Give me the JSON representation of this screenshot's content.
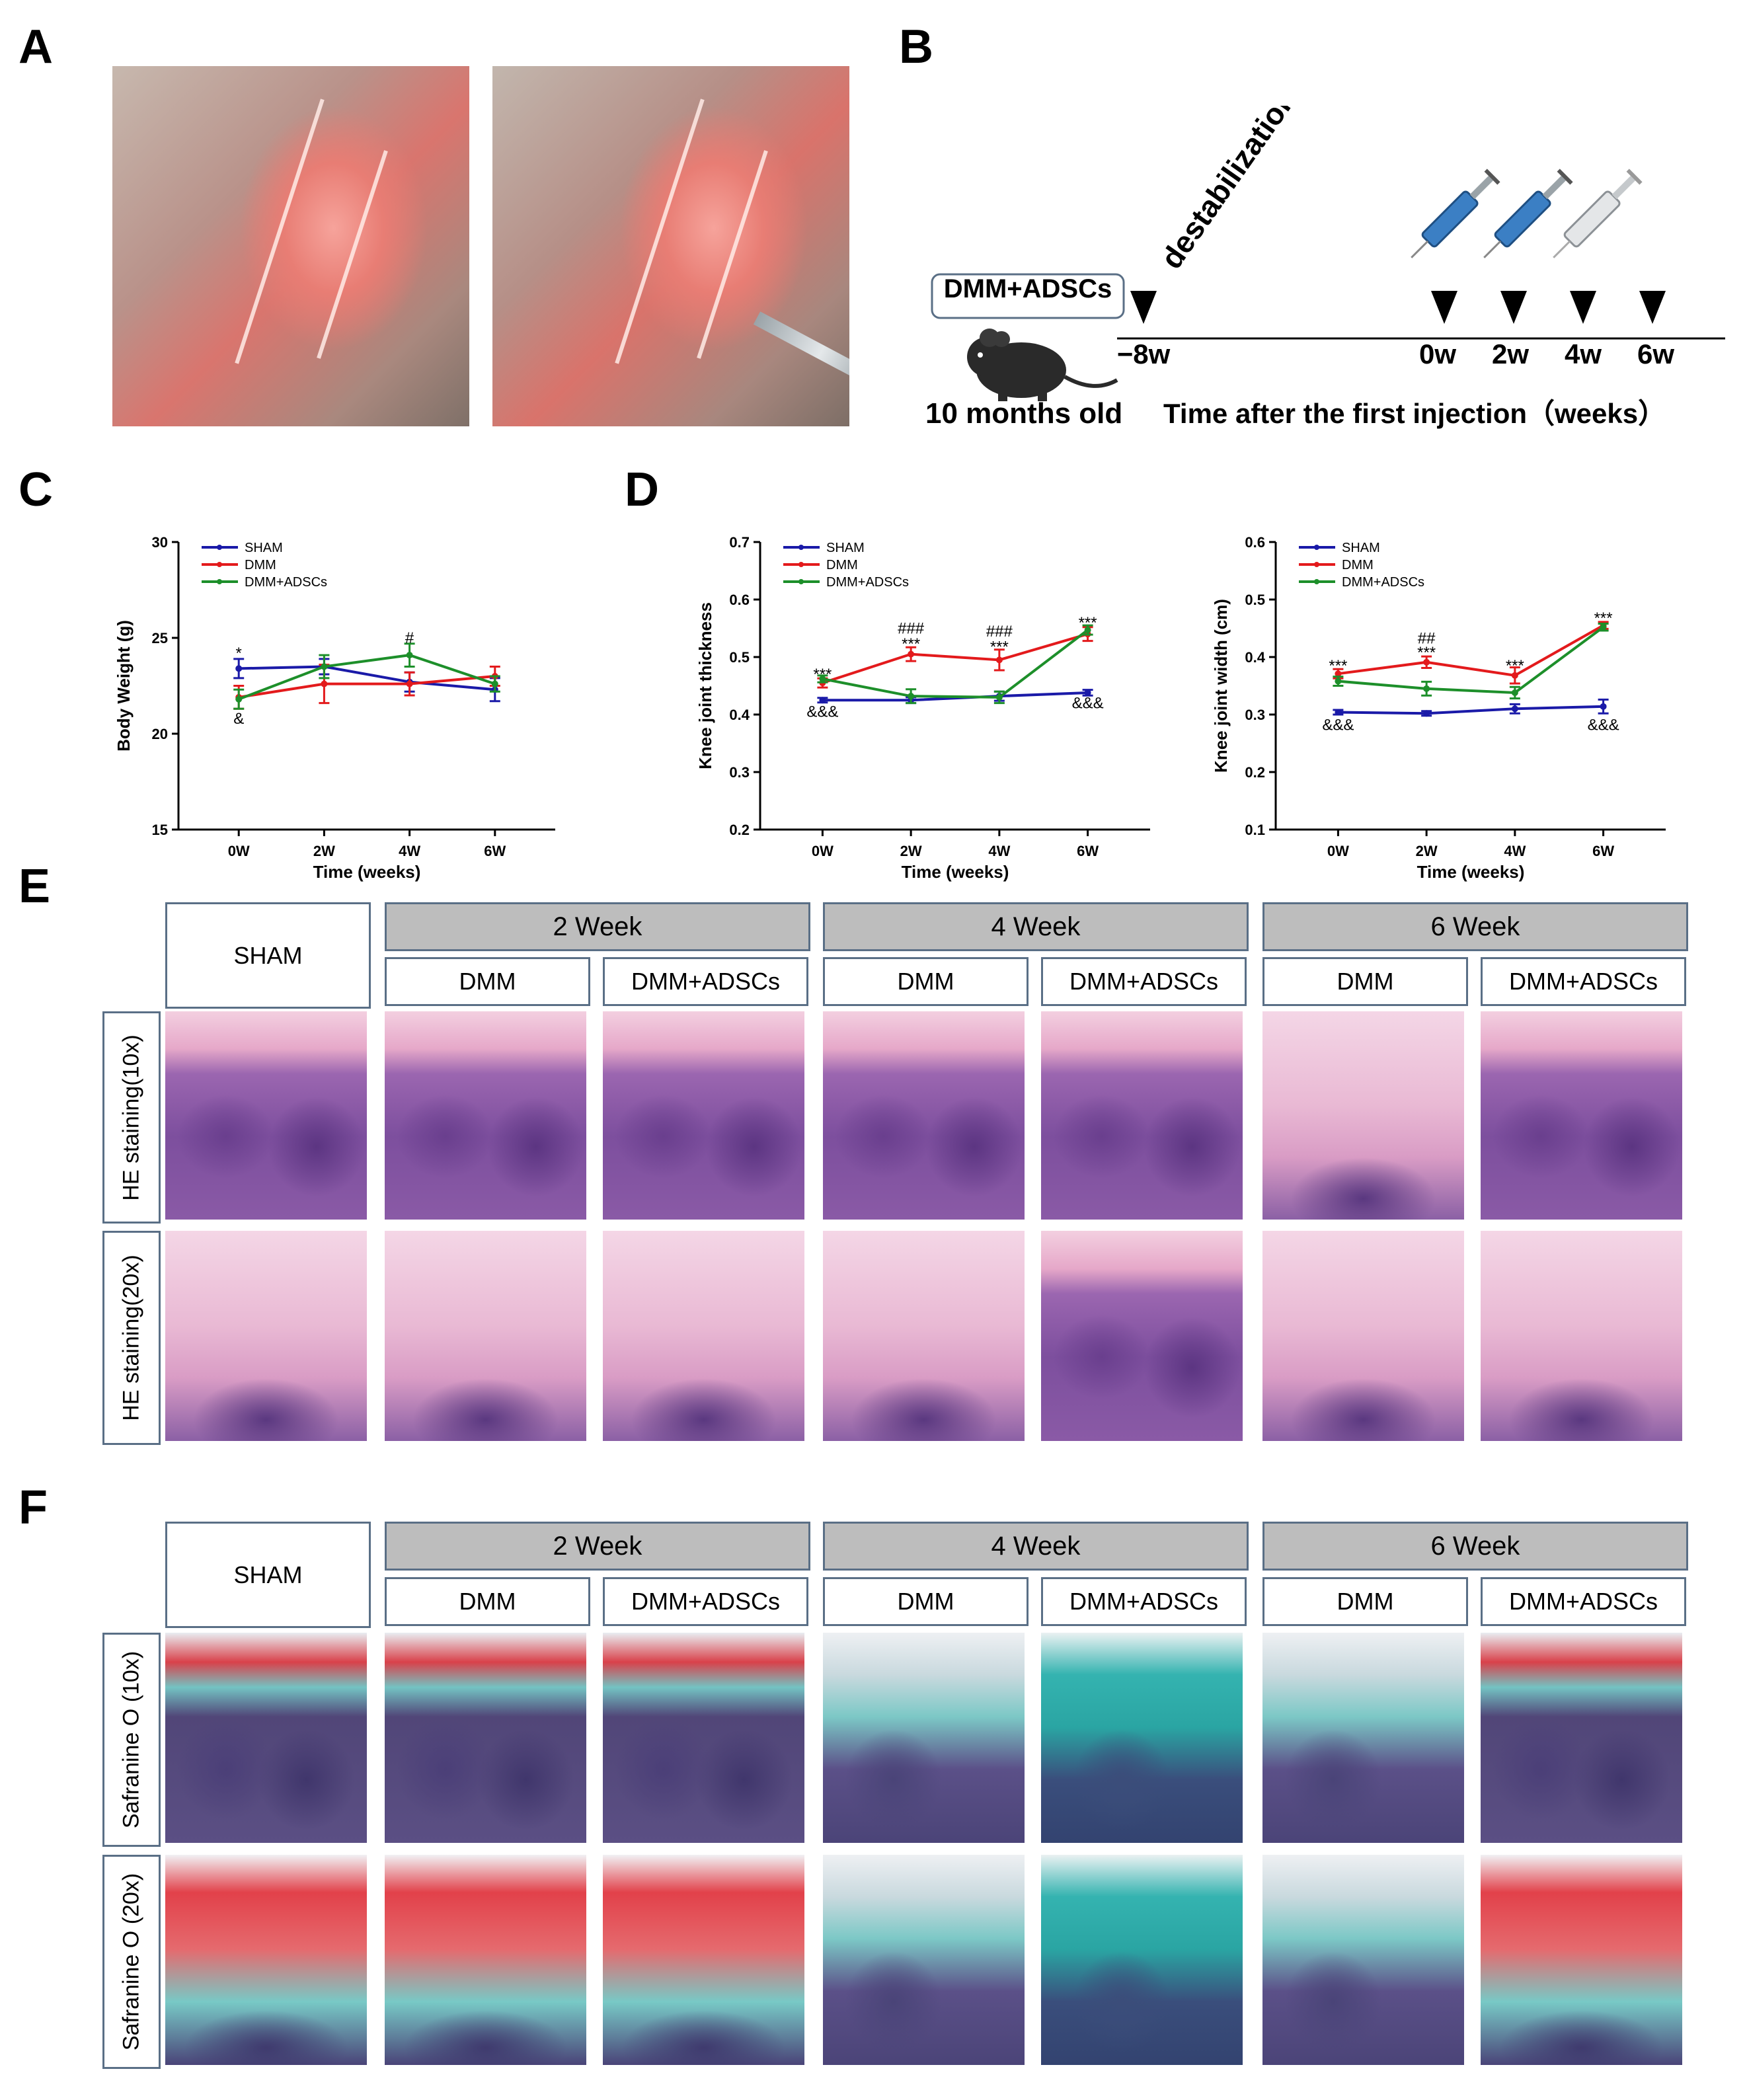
{
  "panels": {
    "A": "A",
    "B": "B",
    "C": "C",
    "D": "D",
    "E": "E",
    "F": "F"
  },
  "timeline": {
    "group_box": "DMM+ADSCs",
    "mouse_age": "10 months old",
    "event": "destabilization",
    "axis_caption": "Time after the first injection（weeks）",
    "ticks": [
      "−8w",
      "0w",
      "2w",
      "4w",
      "6w"
    ]
  },
  "histology": {
    "sham": "SHAM",
    "week_headers": [
      "2 Week",
      "4 Week",
      "6 Week"
    ],
    "group_labels": [
      "DMM",
      "DMM+ADSCs",
      "DMM",
      "DMM+ADSCs",
      "DMM",
      "DMM+ADSCs"
    ],
    "he_rows": [
      "HE staining(10x)",
      "HE staining(20x)"
    ],
    "sf_rows": [
      "Safranine O (10x)",
      "Safranine O (20x)"
    ]
  },
  "colors": {
    "sham": "#1a1aa8",
    "dmm": "#e31a1c",
    "adsc": "#1d8f2a",
    "box_border": "#5a6f86"
  },
  "chart_data": [
    {
      "type": "line",
      "ylabel": "Body Weight (g)",
      "xlabel": "Time (weeks)",
      "categories": [
        "0W",
        "2W",
        "4W",
        "6W"
      ],
      "ylim": [
        15,
        30
      ],
      "yticks": [
        15,
        20,
        25,
        30
      ],
      "legend_position": "top-left",
      "series": [
        {
          "name": "SHAM",
          "color": "#1a1aa8",
          "values": [
            23.4,
            23.5,
            22.7,
            22.3
          ],
          "err": [
            0.5,
            0.4,
            0.5,
            0.6
          ]
        },
        {
          "name": "DMM",
          "color": "#e31a1c",
          "values": [
            21.9,
            22.6,
            22.6,
            23.0
          ],
          "err": [
            0.6,
            1.0,
            0.6,
            0.5
          ]
        },
        {
          "name": "DMM+ADSCs",
          "color": "#1d8f2a",
          "values": [
            21.8,
            23.5,
            24.1,
            22.6
          ],
          "err": [
            0.5,
            0.6,
            0.6,
            0.4
          ]
        }
      ],
      "annotations": [
        {
          "x": 0,
          "y": 24.2,
          "text": "*",
          "color": "#000000"
        },
        {
          "x": 0,
          "y": 20.8,
          "text": "&",
          "color": "#000000"
        },
        {
          "x": 2,
          "y": 25.0,
          "text": "#",
          "color": "#000000"
        }
      ]
    },
    {
      "type": "line",
      "ylabel": "Knee joint thickness",
      "xlabel": "Time (weeks)",
      "categories": [
        "0W",
        "2W",
        "4W",
        "6W"
      ],
      "ylim": [
        0.2,
        0.7
      ],
      "yticks": [
        0.2,
        0.3,
        0.4,
        0.5,
        0.6,
        0.7
      ],
      "legend_position": "top-left",
      "series": [
        {
          "name": "SHAM",
          "color": "#1a1aa8",
          "values": [
            0.425,
            0.425,
            0.432,
            0.438
          ],
          "err": [
            0.004,
            0.005,
            0.008,
            0.005
          ]
        },
        {
          "name": "DMM",
          "color": "#e31a1c",
          "values": [
            0.455,
            0.505,
            0.495,
            0.54
          ],
          "err": [
            0.008,
            0.012,
            0.018,
            0.012
          ]
        },
        {
          "name": "DMM+ADSCs",
          "color": "#1d8f2a",
          "values": [
            0.462,
            0.432,
            0.43,
            0.547
          ],
          "err": [
            0.006,
            0.012,
            0.01,
            0.008
          ]
        }
      ],
      "annotations": [
        {
          "x": 0,
          "y": 0.47,
          "text": "***",
          "color": "#000000"
        },
        {
          "x": 0,
          "y": 0.405,
          "text": "&&&",
          "color": "#000000"
        },
        {
          "x": 1,
          "y": 0.523,
          "text": "***",
          "color": "#000000"
        },
        {
          "x": 1,
          "y": 0.55,
          "text": "###",
          "color": "#000000"
        },
        {
          "x": 2,
          "y": 0.518,
          "text": "***",
          "color": "#000000"
        },
        {
          "x": 2,
          "y": 0.545,
          "text": "###",
          "color": "#000000"
        },
        {
          "x": 3,
          "y": 0.56,
          "text": "***",
          "color": "#000000"
        },
        {
          "x": 3,
          "y": 0.42,
          "text": "&&&",
          "color": "#000000"
        }
      ]
    },
    {
      "type": "line",
      "ylabel": "Knee joint width (cm)",
      "xlabel": "Time (weeks)",
      "categories": [
        "0W",
        "2W",
        "4W",
        "6W"
      ],
      "ylim": [
        0.1,
        0.6
      ],
      "yticks": [
        0.1,
        0.2,
        0.3,
        0.4,
        0.5,
        0.6
      ],
      "legend_position": "top-left",
      "series": [
        {
          "name": "SHAM",
          "color": "#1a1aa8",
          "values": [
            0.304,
            0.302,
            0.31,
            0.314
          ],
          "err": [
            0.004,
            0.004,
            0.008,
            0.012
          ]
        },
        {
          "name": "DMM",
          "color": "#e31a1c",
          "values": [
            0.371,
            0.391,
            0.368,
            0.455
          ],
          "err": [
            0.008,
            0.01,
            0.014,
            0.006
          ]
        },
        {
          "name": "DMM+ADSCs",
          "color": "#1d8f2a",
          "values": [
            0.358,
            0.345,
            0.338,
            0.452
          ],
          "err": [
            0.008,
            0.012,
            0.01,
            0.006
          ]
        }
      ],
      "annotations": [
        {
          "x": 0,
          "y": 0.385,
          "text": "***",
          "color": "#000000"
        },
        {
          "x": 0,
          "y": 0.282,
          "text": "&&&",
          "color": "#000000"
        },
        {
          "x": 1,
          "y": 0.408,
          "text": "***",
          "color": "#000000"
        },
        {
          "x": 1,
          "y": 0.433,
          "text": "##",
          "color": "#000000"
        },
        {
          "x": 2,
          "y": 0.385,
          "text": "***",
          "color": "#000000"
        },
        {
          "x": 3,
          "y": 0.468,
          "text": "***",
          "color": "#000000"
        },
        {
          "x": 3,
          "y": 0.282,
          "text": "&&&",
          "color": "#000000"
        }
      ]
    }
  ]
}
